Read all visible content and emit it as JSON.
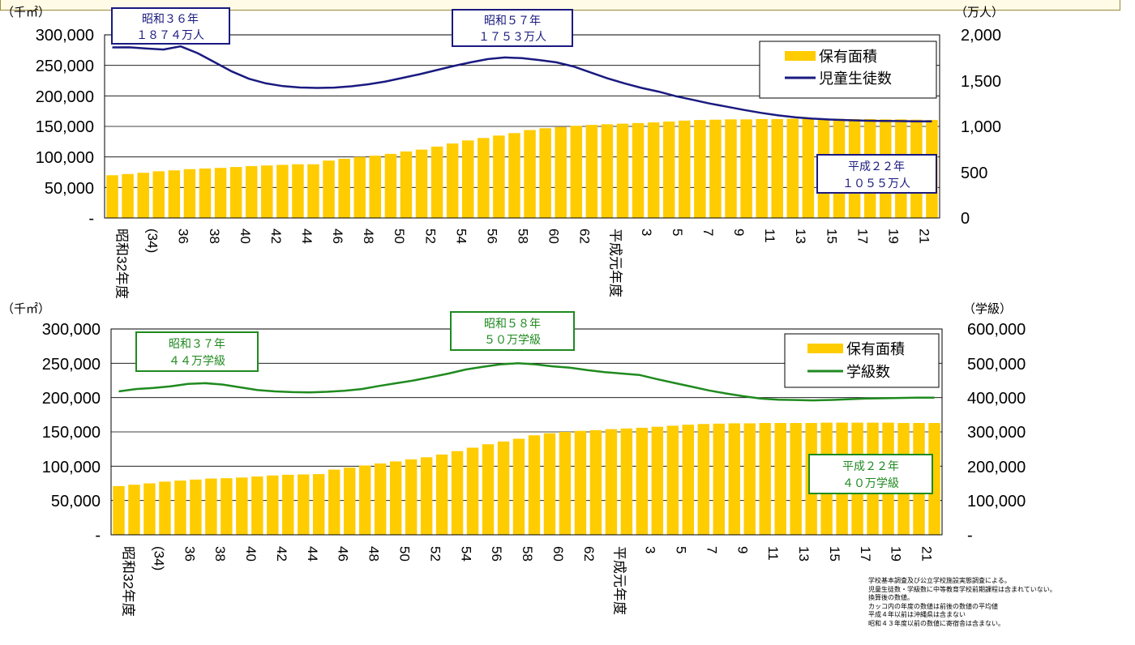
{
  "notes": [
    "学校基本調査及び公立学校施設実態調査による。",
    "児童生徒数・学級数に中等教育学校前期課程は含まれていない。",
    "換算後の数値。",
    "カッコ内の年度の数値は前後の数値の平均値",
    "平成４年以前は沖縄県は含まない",
    "昭和４３年度以前の数値に寄宿舎は含まない。"
  ],
  "colors": {
    "bar": "#ffcc00",
    "line_top": "#1a1a80",
    "line_bottom": "#1f8a1f",
    "callout_top": "#1a1a80",
    "callout_bottom": "#1f8a1f"
  },
  "chart_data": [
    {
      "type": "bar+line",
      "left_unit": "（千㎡）",
      "right_unit": "（万人）",
      "left_ticks": [
        "300,000",
        "250,000",
        "200,000",
        "150,000",
        "100,000",
        "50,000",
        "-"
      ],
      "right_ticks": [
        "2,000",
        "1,500",
        "1,000",
        "500",
        "0"
      ],
      "ylim_left": [
        0,
        300000
      ],
      "ylim_right": [
        0,
        2000
      ],
      "x_tick_labels": [
        "昭和32年度",
        "(34)",
        "36",
        "38",
        "40",
        "42",
        "44",
        "46",
        "48",
        "50",
        "52",
        "54",
        "56",
        "58",
        "60",
        "62",
        "平成元年度",
        "3",
        "5",
        "7",
        "9",
        "11",
        "13",
        "15",
        "17",
        "19",
        "21"
      ],
      "legend": [
        {
          "name": "保有面積",
          "kind": "bar"
        },
        {
          "name": "児童生徒数",
          "kind": "line"
        }
      ],
      "bars": [
        70000,
        72000,
        74000,
        76500,
        78000,
        80000,
        81000,
        82000,
        83500,
        85000,
        86000,
        87000,
        88000,
        88000,
        94000,
        97000,
        100000,
        102000,
        105000,
        109000,
        112000,
        117000,
        122000,
        127000,
        131000,
        135000,
        139000,
        144000,
        147000,
        149000,
        151000,
        152500,
        153500,
        154500,
        155500,
        156500,
        158000,
        159500,
        160500,
        161000,
        161500,
        161500,
        162000,
        162000,
        162500,
        162500,
        162500,
        162500,
        162000,
        162000,
        161500,
        161500,
        161000,
        160500
      ],
      "line": [
        1863,
        1864,
        1850,
        1840,
        1874,
        1800,
        1700,
        1600,
        1520,
        1470,
        1440,
        1425,
        1420,
        1424,
        1438,
        1460,
        1490,
        1530,
        1570,
        1615,
        1660,
        1700,
        1735,
        1753,
        1745,
        1725,
        1700,
        1655,
        1590,
        1525,
        1470,
        1420,
        1380,
        1330,
        1290,
        1250,
        1215,
        1180,
        1148,
        1120,
        1100,
        1085,
        1075,
        1068,
        1063,
        1060,
        1058,
        1056,
        1055
      ],
      "callouts": [
        {
          "line1": "昭和３６年",
          "line2": "１８７４万人"
        },
        {
          "line1": "昭和５７年",
          "line2": "１７５３万人"
        },
        {
          "line1": "平成２２年",
          "line2": "１０５５万人"
        }
      ]
    },
    {
      "type": "bar+line",
      "left_unit": "（千㎡）",
      "right_unit": "（学級）",
      "left_ticks": [
        "300,000",
        "250,000",
        "200,000",
        "150,000",
        "100,000",
        "50,000",
        "-"
      ],
      "right_ticks": [
        "600,000",
        "500,000",
        "400,000",
        "300,000",
        "200,000",
        "100,000",
        "-"
      ],
      "ylim_left": [
        0,
        300000
      ],
      "ylim_right": [
        0,
        600000
      ],
      "x_tick_labels": [
        "昭和32年度",
        "(34)",
        "36",
        "38",
        "40",
        "42",
        "44",
        "46",
        "48",
        "50",
        "52",
        "54",
        "56",
        "58",
        "60",
        "62",
        "平成元年度",
        "3",
        "5",
        "7",
        "9",
        "11",
        "13",
        "15",
        "17",
        "19",
        "21"
      ],
      "legend": [
        {
          "name": "保有面積",
          "kind": "bar"
        },
        {
          "name": "学級数",
          "kind": "line"
        }
      ],
      "bars": [
        71000,
        73000,
        75000,
        77500,
        79000,
        80500,
        82000,
        82500,
        83500,
        85000,
        86500,
        87500,
        88000,
        88500,
        95000,
        98000,
        101000,
        104000,
        107000,
        110000,
        113000,
        117000,
        122000,
        127000,
        132000,
        136000,
        140000,
        145000,
        148000,
        150000,
        151500,
        152500,
        154000,
        155000,
        156000,
        157500,
        159000,
        160500,
        161500,
        162000,
        162500,
        162500,
        163000,
        163000,
        163000,
        163000,
        163500,
        163500,
        163500,
        163500,
        163500,
        163000,
        163000,
        163000
      ],
      "line": [
        418000,
        425000,
        428000,
        433000,
        440000,
        442000,
        438000,
        430000,
        422000,
        418000,
        416000,
        415000,
        417000,
        420000,
        425000,
        434000,
        442000,
        450000,
        460000,
        470000,
        482000,
        490000,
        497000,
        500000,
        497000,
        491000,
        487000,
        480000,
        474000,
        470000,
        466000,
        454000,
        443000,
        432000,
        421000,
        412000,
        404000,
        397000,
        394000,
        393000,
        392000,
        393000,
        395000,
        397000,
        398000,
        399000,
        400000,
        400000
      ],
      "callouts": [
        {
          "line1": "昭和３７年",
          "line2": "４４万学級"
        },
        {
          "line1": "昭和５８年",
          "line2": "５０万学級"
        },
        {
          "line1": "平成２２年",
          "line2": "４０万学級"
        }
      ]
    }
  ]
}
